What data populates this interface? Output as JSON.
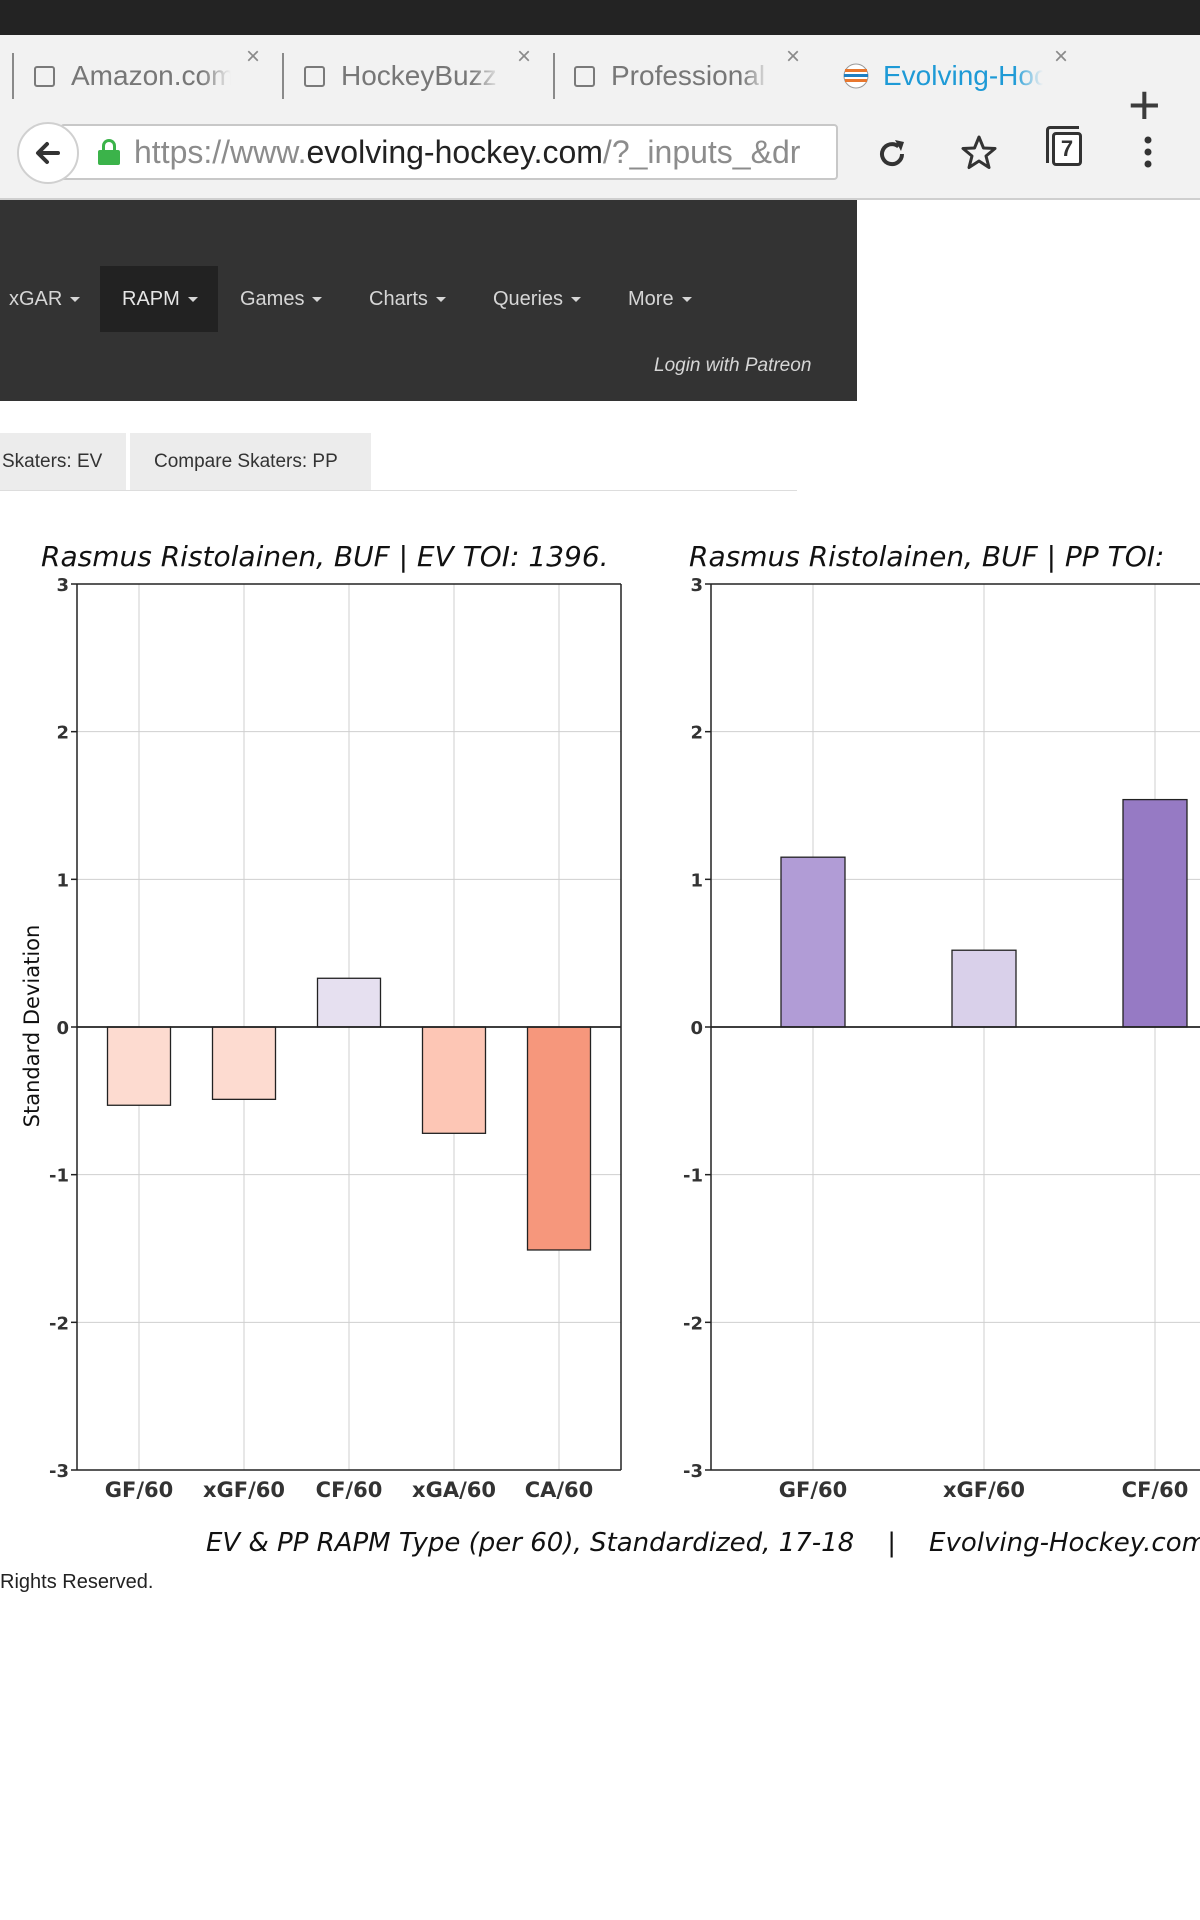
{
  "browser": {
    "tabs": [
      {
        "title": "Amazon.com",
        "active": false
      },
      {
        "title": "HockeyBuzz",
        "active": false
      },
      {
        "title": "Professional",
        "active": false
      },
      {
        "title": "Evolving-Hockey",
        "active": true
      }
    ],
    "close_glyph": "×",
    "new_tab_glyph": "+",
    "url_prefix": "https://www.",
    "url_domain": "evolving-hockey.com",
    "url_suffix": "/?_inputs_&dr",
    "tab_count": "7",
    "icons": [
      "back-arrow-icon",
      "lock-icon",
      "reload-icon",
      "star-icon",
      "tab-switcher-icon",
      "overflow-menu-icon"
    ]
  },
  "nav": {
    "items": [
      {
        "label": "xGAR",
        "active": false
      },
      {
        "label": "RAPM",
        "active": true
      },
      {
        "label": "Games",
        "active": false
      },
      {
        "label": "Charts",
        "active": false
      },
      {
        "label": "Queries",
        "active": false
      },
      {
        "label": "More",
        "active": false
      }
    ],
    "login": "Login with Patreon"
  },
  "subtabs": [
    "Skaters: EV",
    "Compare Skaters: PP"
  ],
  "chart_data": [
    {
      "type": "bar",
      "title": "Rasmus Ristolainen, BUF  |  EV TOI: 1396.",
      "ylabel": "Standard Deviation",
      "ylim": [
        -3,
        3
      ],
      "yticks": [
        3,
        2,
        1,
        0,
        -1,
        -2,
        -3
      ],
      "grid": true,
      "categories": [
        "GF/60",
        "xGF/60",
        "CF/60",
        "xGA/60",
        "CA/60"
      ],
      "values": [
        -0.53,
        -0.49,
        0.33,
        -0.72,
        -1.51
      ],
      "colors": [
        "#fddbd0",
        "#fddbd0",
        "#e6e0f0",
        "#fdc6b5",
        "#f6977c"
      ]
    },
    {
      "type": "bar",
      "title": "Rasmus Ristolainen, BUF  |  PP TOI:",
      "ylabel": "",
      "ylim": [
        -3,
        3
      ],
      "yticks": [
        3,
        2,
        1,
        0,
        -1,
        -2,
        -3
      ],
      "grid": true,
      "categories": [
        "GF/60",
        "xGF/60",
        "CF/60"
      ],
      "values": [
        1.15,
        0.52,
        1.54
      ],
      "colors": [
        "#b19cd6",
        "#d9d0ea",
        "#967ac4"
      ]
    }
  ],
  "caption": "EV & PP RAPM Type (per 60), Standardized, 17-18    |    Evolving-Hockey.com",
  "copyright": "Rights Reserved."
}
